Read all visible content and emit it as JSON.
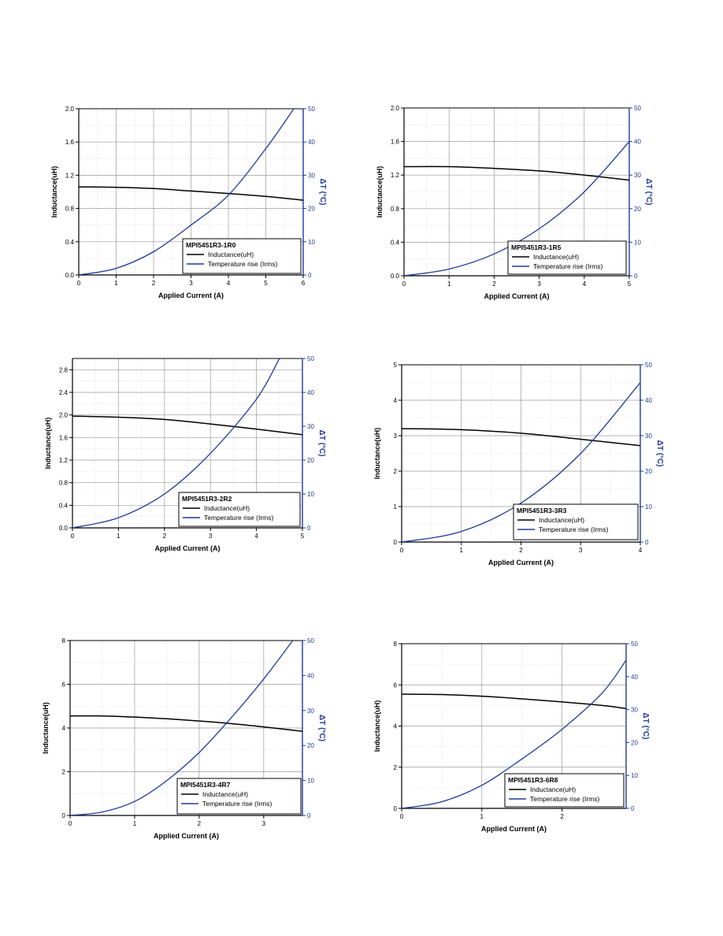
{
  "colors": {
    "inductance": "#000000",
    "temperature": "#1f3a9a",
    "right_axis": "#1f3a9a",
    "grid": "#9a9a9a",
    "grid_minor": "#cfcfcf"
  },
  "chart_data": [
    {
      "type": "line",
      "title": "MPI5451R3-1R0",
      "xlabel": "Applied Current (A)",
      "ylabel": "Inductance(uH)",
      "y2label": "ΔT (°C)",
      "xlim": [
        0,
        6
      ],
      "xticks": [
        0,
        1,
        2,
        3,
        4,
        5,
        6
      ],
      "xtick_labels": [
        "0",
        "1",
        "2",
        "3",
        "4",
        "5",
        "6"
      ],
      "ylim": [
        0,
        2.0
      ],
      "yticks": [
        0,
        0.4,
        0.8,
        1.2,
        1.6,
        2.0
      ],
      "ytick_labels": [
        "0.0",
        "0.4",
        "0.8",
        "1.2",
        "1.6",
        "2.0"
      ],
      "y2lim": [
        0,
        50
      ],
      "y2ticks": [
        0,
        10,
        20,
        30,
        40,
        50
      ],
      "y2tick_labels": [
        "0",
        "10",
        "20",
        "30",
        "40",
        "50"
      ],
      "legend": {
        "position": "bottom-right",
        "entries": [
          "Inductance(uH)",
          "Temperature rise (Irms)"
        ]
      },
      "series": [
        {
          "name": "Inductance(uH)",
          "axis": "left",
          "x": [
            0,
            1,
            2,
            3,
            4,
            5,
            6
          ],
          "values": [
            1.06,
            1.055,
            1.04,
            1.01,
            0.98,
            0.945,
            0.9
          ]
        },
        {
          "name": "Temperature rise (Irms)",
          "axis": "right",
          "x": [
            0,
            1,
            2,
            3,
            4,
            5,
            5.75
          ],
          "values": [
            0,
            2,
            7,
            15,
            24,
            38,
            50
          ]
        }
      ]
    },
    {
      "type": "line",
      "title": "MPI5451R3-1R5",
      "xlabel": "Applied Current (A)",
      "ylabel": "Inductance(uH)",
      "y2label": "ΔT (°C)",
      "xlim": [
        0,
        5
      ],
      "xticks": [
        0,
        1,
        2,
        3,
        4,
        5
      ],
      "xtick_labels": [
        "0",
        "1",
        "2",
        "3",
        "4",
        "5"
      ],
      "ylim": [
        0,
        2.0
      ],
      "yticks": [
        0,
        0.4,
        0.8,
        1.2,
        1.6,
        2.0
      ],
      "ytick_labels": [
        "0.0",
        "0.4",
        "0.8",
        "1.2",
        "1.6",
        "2.0"
      ],
      "y2lim": [
        0,
        50
      ],
      "y2ticks": [
        0,
        10,
        20,
        30,
        40,
        50
      ],
      "y2tick_labels": [
        "0",
        "10",
        "20",
        "30",
        "40",
        "50"
      ],
      "legend": {
        "position": "bottom-right",
        "entries": [
          "Inductance(uH)",
          "Temperature rise (Irms)"
        ]
      },
      "series": [
        {
          "name": "Inductance(uH)",
          "axis": "left",
          "x": [
            0,
            1,
            2,
            3,
            4,
            5
          ],
          "values": [
            1.3,
            1.3,
            1.28,
            1.25,
            1.2,
            1.14
          ]
        },
        {
          "name": "Temperature rise (Irms)",
          "axis": "right",
          "x": [
            0,
            1,
            2,
            3,
            4,
            5
          ],
          "values": [
            0,
            2,
            6.5,
            14,
            25,
            40
          ]
        }
      ]
    },
    {
      "type": "line",
      "title": "MPI5451R3-2R2",
      "xlabel": "Applied Current (A)",
      "ylabel": "Inductance(uH)",
      "y2label": "ΔT (°C)",
      "xlim": [
        0,
        5
      ],
      "xticks": [
        0,
        1,
        2,
        3,
        4,
        5
      ],
      "xtick_labels": [
        "0",
        "1",
        "2",
        "3",
        "4",
        "5"
      ],
      "ylim": [
        0,
        3.0
      ],
      "yticks": [
        0,
        0.4,
        0.8,
        1.2,
        1.6,
        2.0,
        2.4,
        2.8
      ],
      "ytick_labels": [
        "0.0",
        "0.4",
        "0.8",
        "1.2",
        "1.6",
        "2.0",
        "2.4",
        "2.8"
      ],
      "y2lim": [
        0,
        50
      ],
      "y2ticks": [
        0,
        10,
        20,
        30,
        40,
        50
      ],
      "y2tick_labels": [
        "0",
        "10",
        "20",
        "30",
        "40",
        "50"
      ],
      "legend": {
        "position": "bottom-right",
        "entries": [
          "Inductance(uH)",
          "Temperature rise (Irms)"
        ]
      },
      "series": [
        {
          "name": "Inductance(uH)",
          "axis": "left",
          "x": [
            0,
            1,
            2,
            3,
            4,
            5
          ],
          "values": [
            1.98,
            1.96,
            1.92,
            1.84,
            1.75,
            1.65
          ]
        },
        {
          "name": "Temperature rise (Irms)",
          "axis": "right",
          "x": [
            0,
            1,
            2,
            3,
            4,
            4.5
          ],
          "values": [
            0,
            3,
            10,
            22,
            38,
            50
          ]
        }
      ]
    },
    {
      "type": "line",
      "title": "MPI5451R3-3R3",
      "xlabel": "Applied Current (A)",
      "ylabel": "Inductance(uH)",
      "y2label": "ΔT (°C)",
      "xlim": [
        0,
        4
      ],
      "xticks": [
        0,
        1,
        2,
        3,
        4
      ],
      "xtick_labels": [
        "0",
        "1",
        "2",
        "3",
        "4"
      ],
      "ylim": [
        0,
        5
      ],
      "yticks": [
        0,
        1,
        2,
        3,
        4,
        5
      ],
      "ytick_labels": [
        "0",
        "1",
        "2",
        "3",
        "4",
        "5"
      ],
      "y2lim": [
        0,
        50
      ],
      "y2ticks": [
        0,
        10,
        20,
        30,
        40,
        50
      ],
      "y2tick_labels": [
        "0",
        "10",
        "20",
        "30",
        "40",
        "50"
      ],
      "legend": {
        "position": "bottom-right",
        "entries": [
          "Inductance(uH)",
          "Temperature rise (Irms)"
        ]
      },
      "series": [
        {
          "name": "Inductance(uH)",
          "axis": "left",
          "x": [
            0,
            1,
            2,
            3,
            4
          ],
          "values": [
            3.2,
            3.17,
            3.07,
            2.9,
            2.72
          ]
        },
        {
          "name": "Temperature rise (Irms)",
          "axis": "right",
          "x": [
            0,
            1,
            2,
            3,
            4
          ],
          "values": [
            0,
            3,
            11,
            25,
            45
          ]
        }
      ]
    },
    {
      "type": "line",
      "title": "MPI5451R3-4R7",
      "xlabel": "Applied Current (A)",
      "ylabel": "Inductance(uH)",
      "y2label": "ΔT (°C)",
      "xlim": [
        0,
        3.6
      ],
      "xticks": [
        0,
        1,
        2,
        3
      ],
      "xtick_labels": [
        "0",
        "1",
        "2",
        "3"
      ],
      "ylim": [
        0,
        8
      ],
      "yticks": [
        0,
        2,
        4,
        6,
        8
      ],
      "ytick_labels": [
        "0",
        "2",
        "4",
        "6",
        "8"
      ],
      "y2lim": [
        0,
        50
      ],
      "y2ticks": [
        0,
        10,
        20,
        30,
        40,
        50
      ],
      "y2tick_labels": [
        "0",
        "10",
        "20",
        "30",
        "40",
        "50"
      ],
      "legend": {
        "position": "bottom-right",
        "entries": [
          "Inductance(uH)",
          "Temperature rise (Irms)"
        ]
      },
      "series": [
        {
          "name": "Inductance(uH)",
          "axis": "left",
          "x": [
            0,
            0.5,
            1,
            1.5,
            2,
            2.5,
            3,
            3.6
          ],
          "values": [
            4.55,
            4.55,
            4.5,
            4.42,
            4.32,
            4.2,
            4.05,
            3.85
          ]
        },
        {
          "name": "Temperature rise (Irms)",
          "axis": "right",
          "x": [
            0,
            0.5,
            1,
            1.5,
            2,
            2.5,
            3,
            3.45
          ],
          "values": [
            0,
            1,
            4,
            10,
            18,
            28,
            39,
            50
          ]
        }
      ]
    },
    {
      "type": "line",
      "title": "MPI5451R3-6R8",
      "xlabel": "Applied Current (A)",
      "ylabel": "Inductance(uH)",
      "y2label": "ΔT (°C)",
      "xlim": [
        0,
        2.8
      ],
      "xticks": [
        0,
        1,
        2
      ],
      "xtick_labels": [
        "0",
        "1",
        "2"
      ],
      "ylim": [
        0,
        8
      ],
      "yticks": [
        0,
        2,
        4,
        6,
        8
      ],
      "ytick_labels": [
        "0",
        "2",
        "4",
        "6",
        "8"
      ],
      "y2lim": [
        0,
        50
      ],
      "y2ticks": [
        0,
        10,
        20,
        30,
        40,
        50
      ],
      "y2tick_labels": [
        "0",
        "10",
        "20",
        "30",
        "40",
        "50"
      ],
      "legend": {
        "position": "bottom-right",
        "entries": [
          "Inductance(uH)",
          "Temperature rise (Irms)"
        ]
      },
      "series": [
        {
          "name": "Inductance(uH)",
          "axis": "left",
          "x": [
            0,
            0.5,
            1,
            1.5,
            2,
            2.5,
            2.8
          ],
          "values": [
            5.55,
            5.53,
            5.45,
            5.32,
            5.17,
            5.0,
            4.85
          ]
        },
        {
          "name": "Temperature rise (Irms)",
          "axis": "right",
          "x": [
            0,
            0.5,
            1,
            1.5,
            2,
            2.5,
            2.8
          ],
          "values": [
            0,
            2,
            7,
            15,
            24,
            35,
            45
          ]
        }
      ]
    }
  ]
}
